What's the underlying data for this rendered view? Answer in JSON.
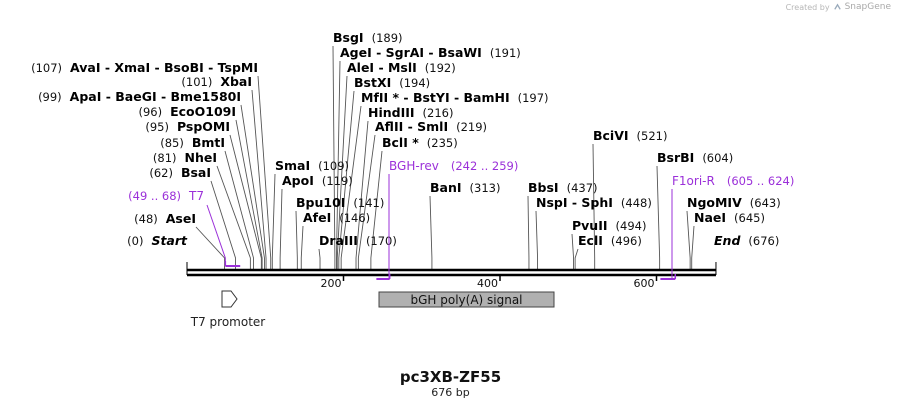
{
  "credit": {
    "prefix": "Created by",
    "brand": "SnapGene"
  },
  "map": {
    "title": "pc3XB-ZF55",
    "length_label": "676 bp"
  },
  "colors": {
    "feature_purple": "#9b30d9",
    "label_text": "#000000",
    "feature_box": "#b0b0b0",
    "primer_label": "#9b30d9"
  },
  "ticks": [
    {
      "label": "200",
      "bp": 200
    },
    {
      "label": "400",
      "bp": 400
    },
    {
      "label": "600",
      "bp": 600
    }
  ],
  "sites": [
    {
      "id": "start",
      "pos": "(0)",
      "names": [
        "Start"
      ],
      "italic": true,
      "bp": 0
    },
    {
      "id": "asei",
      "pos": "(48)",
      "names": [
        "AseI"
      ],
      "bp": 48
    },
    {
      "id": "bsai",
      "pos": "(62)",
      "names": [
        "BsaI"
      ],
      "bp": 62
    },
    {
      "id": "nhei",
      "pos": "(81)",
      "names": [
        "NheI"
      ],
      "bp": 81
    },
    {
      "id": "bmti",
      "pos": "(85)",
      "names": [
        "BmtI"
      ],
      "bp": 85
    },
    {
      "id": "pspomi",
      "pos": "(95)",
      "names": [
        "PspOMI"
      ],
      "bp": 95
    },
    {
      "id": "ecoo109i",
      "pos": "(96)",
      "names": [
        "EcoO109I"
      ],
      "bp": 96
    },
    {
      "id": "apai",
      "pos": "(99)",
      "names": [
        "ApaI",
        "BaeGI",
        "Bme1580I"
      ],
      "bp": 99
    },
    {
      "id": "xbai",
      "pos": "(101)",
      "names": [
        "XbaI"
      ],
      "bp": 101
    },
    {
      "id": "avai",
      "pos": "(107)",
      "names": [
        "AvaI",
        "XmaI",
        "BsoBI",
        "TspMI"
      ],
      "bp": 107
    },
    {
      "id": "smai",
      "pos": "(109)",
      "names": [
        "SmaI"
      ],
      "bp": 109
    },
    {
      "id": "apoi",
      "pos": "(119)",
      "names": [
        "ApoI"
      ],
      "bp": 119
    },
    {
      "id": "bpu10i",
      "pos": "(141)",
      "names": [
        "Bpu10I"
      ],
      "bp": 141
    },
    {
      "id": "afei",
      "pos": "(146)",
      "names": [
        "AfeI"
      ],
      "bp": 146
    },
    {
      "id": "draiii",
      "pos": "(170)",
      "names": [
        "DraIII"
      ],
      "bp": 170
    },
    {
      "id": "bsgi",
      "pos": "(189)",
      "names": [
        "BsgI"
      ],
      "bp": 189
    },
    {
      "id": "agei",
      "pos": "(191)",
      "names": [
        "AgeI",
        "SgrAI",
        "BsaWI"
      ],
      "bp": 191
    },
    {
      "id": "alei",
      "pos": "(192)",
      "names": [
        "AleI",
        "MslI"
      ],
      "bp": 192
    },
    {
      "id": "bstxi",
      "pos": "(194)",
      "names": [
        "BstXI"
      ],
      "bp": 194
    },
    {
      "id": "mfli",
      "pos": "(197)",
      "names": [
        "MfII *",
        "BstYI",
        "BamHI"
      ],
      "bp": 197
    },
    {
      "id": "hindiii",
      "pos": "(216)",
      "names": [
        "HindIII"
      ],
      "bp": 216
    },
    {
      "id": "aflii",
      "pos": "(219)",
      "names": [
        "AflII",
        "SmlI"
      ],
      "bp": 219
    },
    {
      "id": "bcli",
      "pos": "(235)",
      "names": [
        "BclI *"
      ],
      "bp": 235
    },
    {
      "id": "bani",
      "pos": "(313)",
      "names": [
        "BanI"
      ],
      "bp": 313
    },
    {
      "id": "bbsi",
      "pos": "(437)",
      "names": [
        "BbsI"
      ],
      "bp": 437
    },
    {
      "id": "nspi",
      "pos": "(448)",
      "names": [
        "NspI",
        "SphI"
      ],
      "bp": 448
    },
    {
      "id": "pvuii",
      "pos": "(494)",
      "names": [
        "PvuII"
      ],
      "bp": 494
    },
    {
      "id": "ecli",
      "pos": "(496)",
      "names": [
        "EclI"
      ],
      "bp": 496
    },
    {
      "id": "bcivi",
      "pos": "(521)",
      "names": [
        "BciVI"
      ],
      "bp": 521
    },
    {
      "id": "bsrbi",
      "pos": "(604)",
      "names": [
        "BsrBI"
      ],
      "bp": 604
    },
    {
      "id": "ngomiv",
      "pos": "(643)",
      "names": [
        "NgoMIV"
      ],
      "bp": 643
    },
    {
      "id": "naei",
      "pos": "(645)",
      "names": [
        "NaeI"
      ],
      "bp": 645
    },
    {
      "id": "end",
      "pos": "(676)",
      "names": [
        "End"
      ],
      "italic": true,
      "bp": 676
    }
  ],
  "primers": [
    {
      "id": "t7",
      "name": "T7",
      "range": "(49 .. 68)",
      "start": 49,
      "end": 68,
      "strand": "forward"
    },
    {
      "id": "bgh-rev",
      "name": "BGH-rev",
      "range": "(242 .. 259)",
      "start": 242,
      "end": 259,
      "strand": "reverse"
    },
    {
      "id": "f1ori-r",
      "name": "F1ori-R",
      "range": "(605 .. 624)",
      "start": 605,
      "end": 624,
      "strand": "reverse"
    }
  ],
  "features": [
    {
      "id": "t7-promoter",
      "label": "T7 promoter",
      "start": 49,
      "end": 68,
      "kind": "promoter"
    },
    {
      "id": "bgh-polya",
      "label": "bGH poly(A) signal",
      "start": 241,
      "end": 466,
      "kind": "polyA"
    }
  ]
}
